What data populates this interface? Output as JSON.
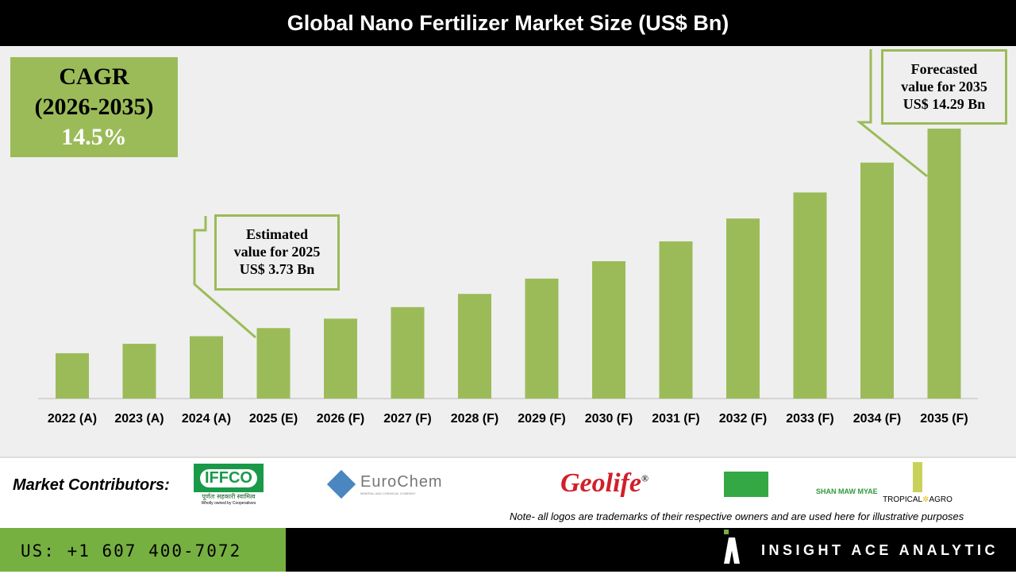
{
  "title": "Global Nano Fertilizer Market Size (US$ Bn)",
  "cagr": {
    "label": "CAGR",
    "period": "(2026-2035)",
    "value": "14.5%"
  },
  "callouts": {
    "estimated": [
      "Estimated",
      "value for 2025",
      "US$ 3.73 Bn"
    ],
    "forecast": [
      "Forecasted",
      "value for 2035",
      "US$ 14.29 Bn"
    ]
  },
  "chart_data": {
    "type": "bar",
    "title": "Global Nano Fertilizer Market Size (US$ Bn)",
    "categories": [
      "2022 (A)",
      "2023 (A)",
      "2024 (A)",
      "2025 (E)",
      "2026 (F)",
      "2027 (F)",
      "2028 (F)",
      "2029 (F)",
      "2030 (F)",
      "2031 (F)",
      "2032 (F)",
      "2033 (F)",
      "2034 (F)",
      "2035 (F)"
    ],
    "values": [
      2.4,
      2.9,
      3.3,
      3.73,
      4.23,
      4.84,
      5.54,
      6.35,
      7.27,
      8.32,
      9.53,
      10.91,
      12.49,
      14.29
    ],
    "ylim": [
      0,
      15
    ],
    "grid": false,
    "bar_color": "#9bbb59"
  },
  "footer": {
    "contributors_label": "Market Contributors:",
    "logos": [
      "IFFCO",
      "पूर्णतः सहकारी स्वामित्व",
      "Wholly owned by Cooperatives",
      "EuroChem",
      "MINERAL AND CHEMICAL COMPANY",
      "Geolife",
      "®",
      "SHAN MAW MYAE",
      "TROPICAL",
      "AGRO"
    ],
    "note": "Note- all logos are trademarks of their respective owners and are used here for illustrative purposes",
    "phone": "US: +1 607 400-7072",
    "brand": "INSIGHT ACE ANALYTIC"
  }
}
